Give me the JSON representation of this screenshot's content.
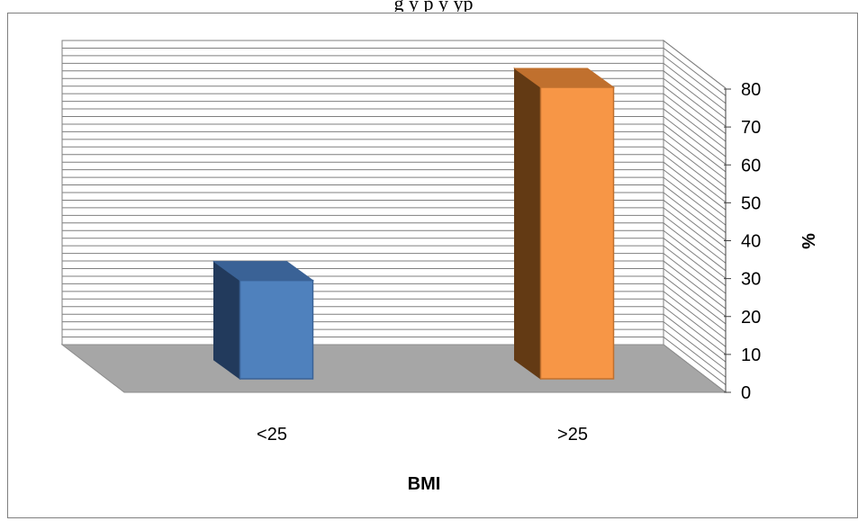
{
  "caption": "g                                                                                            y  p    y    yp",
  "chart_data": {
    "type": "bar",
    "categories": [
      "<25",
      ">25"
    ],
    "values": [
      27,
      80
    ],
    "xlabel": "BMI",
    "ylabel": "%",
    "ylim": [
      0,
      80
    ],
    "yticks": [
      0,
      10,
      20,
      30,
      40,
      50,
      60,
      70,
      80
    ],
    "grid": true,
    "style": "3d-column",
    "colors": {
      "bars": [
        "#4f81bd",
        "#f79646"
      ],
      "bar_tops": [
        "#3a6296",
        "#c0702e"
      ],
      "bar_sides": [
        "#223a5c",
        "#633a14"
      ],
      "floor": "#a6a6a6",
      "wall": "#ffffff",
      "gridline": "#7f7f7f"
    }
  }
}
